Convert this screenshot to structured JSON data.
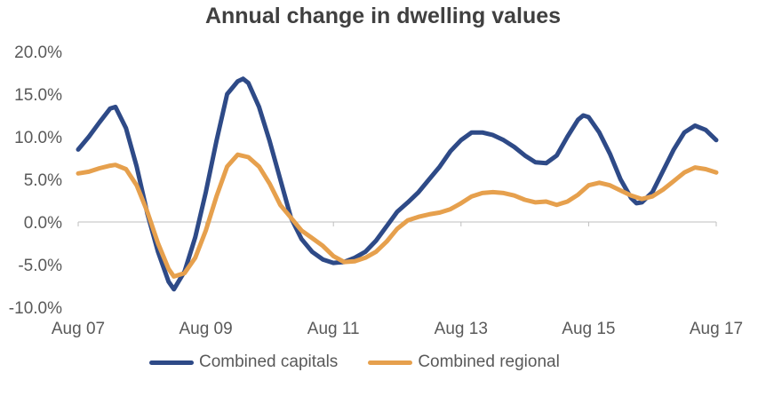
{
  "chart_data": {
    "type": "line",
    "title": "Annual change in dwelling values",
    "xlabel": "",
    "ylabel": "",
    "ylim": [
      -10,
      20
    ],
    "y_ticks": [
      "20.0%",
      "15.0%",
      "10.0%",
      "5.0%",
      "0.0%",
      "-5.0%",
      "-10.0%"
    ],
    "y_tick_values": [
      20,
      15,
      10,
      5,
      0,
      -5,
      -10
    ],
    "x_ticks": [
      "Aug 07",
      "Aug 09",
      "Aug 11",
      "Aug 13",
      "Aug 15",
      "Aug 17"
    ],
    "x_tick_values": [
      2007.583,
      2009.583,
      2011.583,
      2013.583,
      2015.583,
      2017.583
    ],
    "grid": false,
    "legend_position": "bottom",
    "series": [
      {
        "name": "Combined capitals",
        "color": "#2E4A87",
        "points": [
          [
            2007.583,
            8.5
          ],
          [
            2007.75,
            10.0
          ],
          [
            2007.917,
            11.7
          ],
          [
            2008.083,
            13.3
          ],
          [
            2008.167,
            13.5
          ],
          [
            2008.333,
            11.0
          ],
          [
            2008.5,
            6.5
          ],
          [
            2008.667,
            1.0
          ],
          [
            2008.833,
            -3.5
          ],
          [
            2009.0,
            -7.0
          ],
          [
            2009.083,
            -7.9
          ],
          [
            2009.25,
            -5.8
          ],
          [
            2009.417,
            -1.8
          ],
          [
            2009.583,
            3.5
          ],
          [
            2009.75,
            9.5
          ],
          [
            2009.917,
            15.0
          ],
          [
            2010.083,
            16.5
          ],
          [
            2010.167,
            16.8
          ],
          [
            2010.25,
            16.3
          ],
          [
            2010.417,
            13.5
          ],
          [
            2010.583,
            9.5
          ],
          [
            2010.75,
            5.0
          ],
          [
            2010.917,
            0.5
          ],
          [
            2011.083,
            -2.0
          ],
          [
            2011.25,
            -3.5
          ],
          [
            2011.417,
            -4.4
          ],
          [
            2011.583,
            -4.8
          ],
          [
            2011.75,
            -4.7
          ],
          [
            2011.917,
            -4.2
          ],
          [
            2012.083,
            -3.5
          ],
          [
            2012.25,
            -2.2
          ],
          [
            2012.417,
            -0.5
          ],
          [
            2012.583,
            1.2
          ],
          [
            2012.75,
            2.3
          ],
          [
            2012.917,
            3.5
          ],
          [
            2013.083,
            5.0
          ],
          [
            2013.25,
            6.5
          ],
          [
            2013.417,
            8.3
          ],
          [
            2013.583,
            9.6
          ],
          [
            2013.75,
            10.5
          ],
          [
            2013.917,
            10.5
          ],
          [
            2014.083,
            10.2
          ],
          [
            2014.25,
            9.6
          ],
          [
            2014.417,
            8.8
          ],
          [
            2014.583,
            7.8
          ],
          [
            2014.75,
            7.0
          ],
          [
            2014.917,
            6.9
          ],
          [
            2015.083,
            7.8
          ],
          [
            2015.25,
            10.0
          ],
          [
            2015.417,
            12.0
          ],
          [
            2015.5,
            12.5
          ],
          [
            2015.583,
            12.3
          ],
          [
            2015.75,
            10.5
          ],
          [
            2015.917,
            8.0
          ],
          [
            2016.083,
            5.0
          ],
          [
            2016.25,
            2.8
          ],
          [
            2016.333,
            2.2
          ],
          [
            2016.417,
            2.3
          ],
          [
            2016.583,
            3.5
          ],
          [
            2016.75,
            6.0
          ],
          [
            2016.917,
            8.5
          ],
          [
            2017.083,
            10.5
          ],
          [
            2017.25,
            11.3
          ],
          [
            2017.417,
            10.8
          ],
          [
            2017.583,
            9.6
          ]
        ]
      },
      {
        "name": "Combined regional",
        "color": "#E6A04D",
        "points": [
          [
            2007.583,
            5.7
          ],
          [
            2007.75,
            5.9
          ],
          [
            2007.917,
            6.3
          ],
          [
            2008.083,
            6.6
          ],
          [
            2008.167,
            6.7
          ],
          [
            2008.333,
            6.2
          ],
          [
            2008.5,
            4.3
          ],
          [
            2008.667,
            1.2
          ],
          [
            2008.833,
            -2.5
          ],
          [
            2009.0,
            -5.5
          ],
          [
            2009.083,
            -6.4
          ],
          [
            2009.25,
            -6.0
          ],
          [
            2009.417,
            -4.2
          ],
          [
            2009.583,
            -1.0
          ],
          [
            2009.75,
            3.0
          ],
          [
            2009.917,
            6.5
          ],
          [
            2010.083,
            7.9
          ],
          [
            2010.25,
            7.6
          ],
          [
            2010.417,
            6.5
          ],
          [
            2010.583,
            4.5
          ],
          [
            2010.75,
            2.0
          ],
          [
            2010.917,
            0.5
          ],
          [
            2011.083,
            -1.0
          ],
          [
            2011.25,
            -1.9
          ],
          [
            2011.417,
            -2.8
          ],
          [
            2011.583,
            -4.0
          ],
          [
            2011.75,
            -4.7
          ],
          [
            2011.917,
            -4.6
          ],
          [
            2012.083,
            -4.2
          ],
          [
            2012.25,
            -3.5
          ],
          [
            2012.417,
            -2.3
          ],
          [
            2012.583,
            -0.8
          ],
          [
            2012.75,
            0.2
          ],
          [
            2012.917,
            0.6
          ],
          [
            2013.083,
            0.9
          ],
          [
            2013.25,
            1.1
          ],
          [
            2013.417,
            1.5
          ],
          [
            2013.583,
            2.2
          ],
          [
            2013.75,
            3.0
          ],
          [
            2013.917,
            3.4
          ],
          [
            2014.083,
            3.5
          ],
          [
            2014.25,
            3.4
          ],
          [
            2014.417,
            3.1
          ],
          [
            2014.583,
            2.6
          ],
          [
            2014.75,
            2.3
          ],
          [
            2014.917,
            2.4
          ],
          [
            2015.083,
            2.0
          ],
          [
            2015.25,
            2.4
          ],
          [
            2015.417,
            3.2
          ],
          [
            2015.583,
            4.3
          ],
          [
            2015.75,
            4.6
          ],
          [
            2015.917,
            4.3
          ],
          [
            2016.083,
            3.7
          ],
          [
            2016.25,
            3.1
          ],
          [
            2016.417,
            2.7
          ],
          [
            2016.583,
            3.0
          ],
          [
            2016.75,
            3.8
          ],
          [
            2016.917,
            4.8
          ],
          [
            2017.083,
            5.8
          ],
          [
            2017.25,
            6.4
          ],
          [
            2017.417,
            6.2
          ],
          [
            2017.583,
            5.8
          ]
        ]
      }
    ]
  }
}
